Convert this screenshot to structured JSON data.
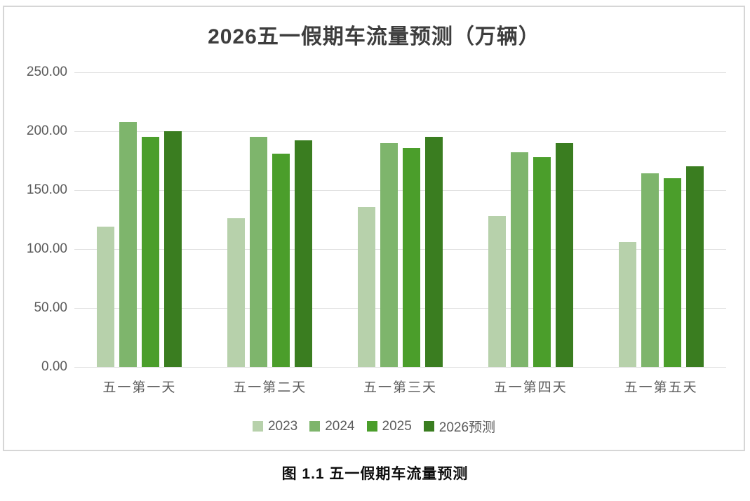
{
  "page": {
    "caption": "图 1.1 五一假期车流量预测"
  },
  "chart_data": {
    "type": "bar",
    "title": "2026五一假期车流量预测（万辆）",
    "xlabel": "",
    "ylabel": "",
    "ylim": [
      0,
      250
    ],
    "grid": true,
    "legend_position": "bottom",
    "categories": [
      "五一第一天",
      "五一第二天",
      "五一第三天",
      "五一第四天",
      "五一第五天"
    ],
    "series": [
      {
        "name": "2023",
        "color": "#b7d1ab",
        "values": [
          119,
          126,
          136,
          128,
          106
        ]
      },
      {
        "name": "2024",
        "color": "#7eb56c",
        "values": [
          208,
          195,
          190,
          182,
          164
        ]
      },
      {
        "name": "2025",
        "color": "#4b9e2b",
        "values": [
          195,
          181,
          186,
          178,
          160
        ]
      },
      {
        "name": "2026预测",
        "color": "#3a7d20",
        "values": [
          200,
          192,
          195,
          190,
          170
        ]
      }
    ],
    "yticks": [
      {
        "value": 250,
        "label": "250.00"
      },
      {
        "value": 200,
        "label": "200.00"
      },
      {
        "value": 150,
        "label": "150.00"
      },
      {
        "value": 100,
        "label": "100.00"
      },
      {
        "value": 50,
        "label": "50.00"
      },
      {
        "value": 0,
        "label": "0.00"
      }
    ],
    "colors": {
      "title_text": "#3d3d3d",
      "axis_text": "#5b5b5b",
      "gridline": "#e2e2e2",
      "frame_border": "#d6d6d6",
      "caption_text": "#0d0d0d"
    }
  }
}
